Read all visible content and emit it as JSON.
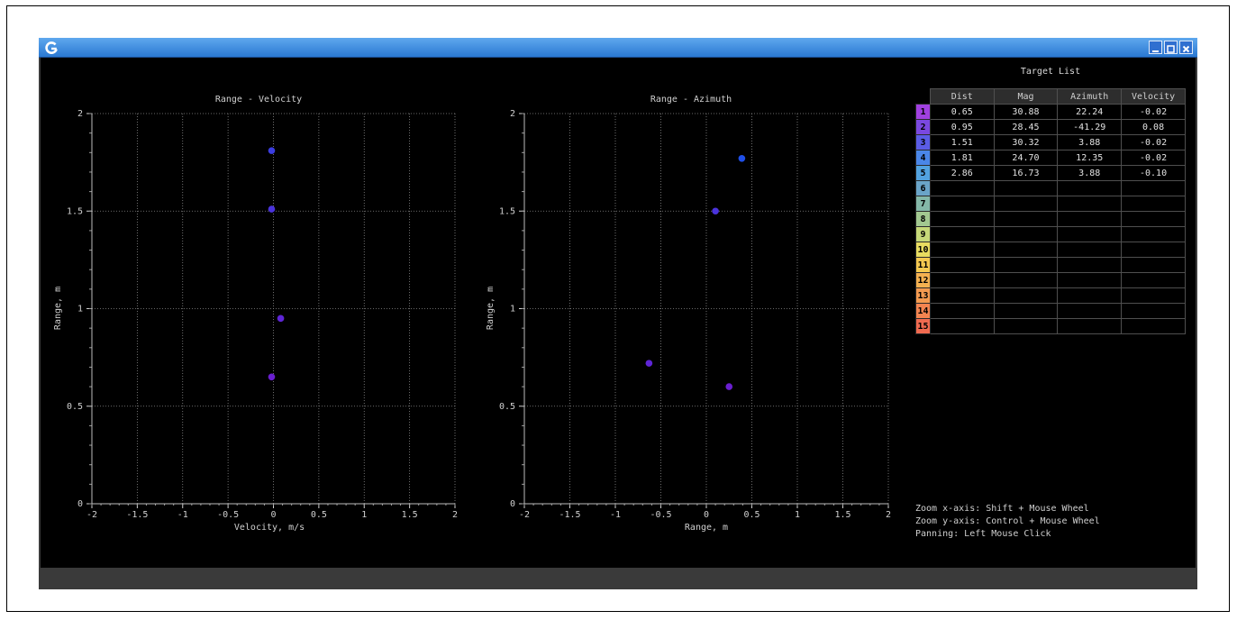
{
  "plots": [
    {
      "title": "Range - Velocity",
      "xlabel": "Velocity, m/s",
      "ylabel": "Range, m",
      "x_ticks": [
        "-2",
        "-1.5",
        "-1",
        "-0.5",
        "0",
        "0.5",
        "1",
        "1.5",
        "2"
      ],
      "y_ticks": [
        "0",
        "0.5",
        "1",
        "1.5",
        "2"
      ],
      "points": [
        {
          "x": -0.02,
          "y": 0.65,
          "color": "#6a1fd0"
        },
        {
          "x": 0.08,
          "y": 0.95,
          "color": "#5e25d6"
        },
        {
          "x": -0.02,
          "y": 1.51,
          "color": "#4a33dc"
        },
        {
          "x": -0.02,
          "y": 1.81,
          "color": "#3b3de0"
        }
      ]
    },
    {
      "title": "Range - Azimuth",
      "xlabel": "Range, m",
      "ylabel": "Range, m",
      "x_ticks": [
        "-2",
        "-1.5",
        "-1",
        "-0.5",
        "0",
        "0.5",
        "1",
        "1.5",
        "2"
      ],
      "y_ticks": [
        "0",
        "0.5",
        "1",
        "1.5",
        "2"
      ],
      "points": [
        {
          "x": 0.25,
          "y": 0.6,
          "color": "#6a1fd0"
        },
        {
          "x": -0.63,
          "y": 0.72,
          "color": "#5e25d6"
        },
        {
          "x": 0.1,
          "y": 1.5,
          "color": "#4a33dc"
        },
        {
          "x": 0.39,
          "y": 1.77,
          "color": "#1f4fe8"
        }
      ]
    }
  ],
  "target_list": {
    "title": "Target List",
    "columns": [
      "Dist",
      "Mag",
      "Azimuth",
      "Velocity"
    ],
    "rows": [
      {
        "index": "1",
        "color": "#a040e0",
        "cells": [
          "0.65",
          "30.88",
          "22.24",
          "-0.02"
        ]
      },
      {
        "index": "2",
        "color": "#7a48e0",
        "cells": [
          "0.95",
          "28.45",
          "-41.29",
          "0.08"
        ]
      },
      {
        "index": "3",
        "color": "#5a5ce6",
        "cells": [
          "1.51",
          "30.32",
          "3.88",
          "-0.02"
        ]
      },
      {
        "index": "4",
        "color": "#4a86e8",
        "cells": [
          "1.81",
          "24.70",
          "12.35",
          "-0.02"
        ]
      },
      {
        "index": "5",
        "color": "#52a2e0",
        "cells": [
          "2.86",
          "16.73",
          "3.88",
          "-0.10"
        ]
      },
      {
        "index": "6",
        "color": "#6aa4c8",
        "cells": [
          "",
          "",
          "",
          ""
        ]
      },
      {
        "index": "7",
        "color": "#84b8a8",
        "cells": [
          "",
          "",
          "",
          ""
        ]
      },
      {
        "index": "8",
        "color": "#a2c890",
        "cells": [
          "",
          "",
          "",
          ""
        ]
      },
      {
        "index": "9",
        "color": "#c6d878",
        "cells": [
          "",
          "",
          "",
          ""
        ]
      },
      {
        "index": "10",
        "color": "#e8dc60",
        "cells": [
          "",
          "",
          "",
          ""
        ]
      },
      {
        "index": "11",
        "color": "#f4c850",
        "cells": [
          "",
          "",
          "",
          ""
        ]
      },
      {
        "index": "12",
        "color": "#f4b050",
        "cells": [
          "",
          "",
          "",
          ""
        ]
      },
      {
        "index": "13",
        "color": "#f49a50",
        "cells": [
          "",
          "",
          "",
          ""
        ]
      },
      {
        "index": "14",
        "color": "#f48450",
        "cells": [
          "",
          "",
          "",
          ""
        ]
      },
      {
        "index": "15",
        "color": "#f06a50",
        "cells": [
          "",
          "",
          "",
          ""
        ]
      }
    ]
  },
  "help": {
    "zoom_x": "Zoom x-axis: Shift + Mouse Wheel",
    "zoom_y": "Zoom y-axis: Control + Mouse Wheel",
    "pan": "Panning: Left Mouse Click"
  },
  "icons": {
    "app": "app-logo-icon",
    "minimize": "minimize-icon",
    "maximize": "maximize-icon",
    "close": "close-icon"
  },
  "colors": {
    "titlebar": "#3a8ae0",
    "background": "#000000",
    "grid": "#8a8a8a",
    "axis_text": "#d0d0d0"
  },
  "chart_data": [
    {
      "type": "scatter",
      "title": "Range - Velocity",
      "xlabel": "Velocity, m/s",
      "ylabel": "Range, m",
      "xlim": [
        -2,
        2
      ],
      "ylim": [
        0,
        2
      ],
      "grid": true,
      "x": [
        -0.02,
        0.08,
        -0.02,
        -0.02
      ],
      "y": [
        0.65,
        0.95,
        1.51,
        1.81
      ]
    },
    {
      "type": "scatter",
      "title": "Range - Azimuth",
      "xlabel": "Range, m",
      "ylabel": "Range, m",
      "xlim": [
        -2,
        2
      ],
      "ylim": [
        0,
        2
      ],
      "grid": true,
      "x": [
        0.25,
        -0.63,
        0.1,
        0.39
      ],
      "y": [
        0.6,
        0.72,
        1.5,
        1.77
      ]
    }
  ]
}
